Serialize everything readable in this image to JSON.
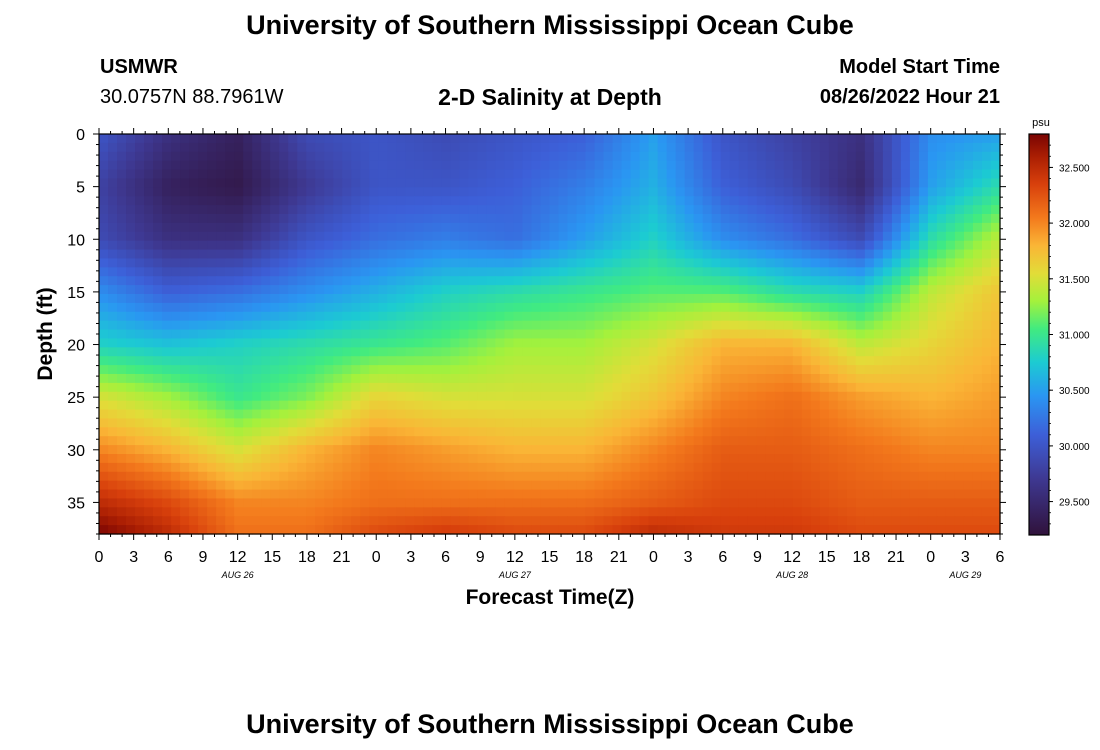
{
  "header": {
    "title": "University of Southern Mississippi Ocean Cube",
    "station": "USMWR",
    "coords": "30.0757N  88.7961W",
    "plot_title": "2-D Salinity at Depth",
    "model_start_label": "Model Start Time",
    "model_start_value": "08/26/2022 Hour 21"
  },
  "footer": {
    "title": "University of Southern Mississippi Ocean Cube"
  },
  "chart_data": {
    "type": "heatmap",
    "title": "2-D Salinity at Depth",
    "xlabel": "Forecast Time(Z)",
    "ylabel": "Depth (ft)",
    "x_hours_range": [
      0,
      78
    ],
    "x_tick_labels": [
      "0",
      "3",
      "6",
      "9",
      "12",
      "15",
      "18",
      "21",
      "0",
      "3",
      "6",
      "9",
      "12",
      "15",
      "18",
      "21",
      "0",
      "3",
      "6",
      "9",
      "12",
      "15",
      "18",
      "21",
      "0",
      "3",
      "6"
    ],
    "x_tick_hours": [
      0,
      3,
      6,
      9,
      12,
      15,
      18,
      21,
      24,
      27,
      30,
      33,
      36,
      39,
      42,
      45,
      48,
      51,
      54,
      57,
      60,
      63,
      66,
      69,
      72,
      75,
      78
    ],
    "date_labels": [
      {
        "text": "AUG 26",
        "hour": 12
      },
      {
        "text": "AUG 27",
        "hour": 36
      },
      {
        "text": "AUG 28",
        "hour": 60
      },
      {
        "text": "AUG 29",
        "hour": 75
      }
    ],
    "y_ticks": [
      0,
      5,
      10,
      15,
      20,
      25,
      30,
      35
    ],
    "ylim": [
      0,
      38
    ],
    "colorbar": {
      "unit": "psu",
      "range": [
        29.2,
        32.8
      ],
      "ticks": [
        "29.500",
        "30.000",
        "30.500",
        "31.000",
        "31.500",
        "32.000",
        "32.500"
      ],
      "tick_values": [
        29.5,
        30.0,
        30.5,
        31.0,
        31.5,
        32.0,
        32.5
      ],
      "stops": [
        {
          "v": 29.2,
          "c": "#30123b"
        },
        {
          "v": 29.7,
          "c": "#3e3891"
        },
        {
          "v": 30.1,
          "c": "#3d5fd8"
        },
        {
          "v": 30.45,
          "c": "#2a96f2"
        },
        {
          "v": 30.75,
          "c": "#1ccbd2"
        },
        {
          "v": 31.05,
          "c": "#41eb80"
        },
        {
          "v": 31.3,
          "c": "#a4f13c"
        },
        {
          "v": 31.55,
          "c": "#e2dc38"
        },
        {
          "v": 31.8,
          "c": "#fab536"
        },
        {
          "v": 32.05,
          "c": "#f3791c"
        },
        {
          "v": 32.35,
          "c": "#d8400c"
        },
        {
          "v": 32.6,
          "c": "#aa1e03"
        },
        {
          "v": 32.8,
          "c": "#7a0403"
        }
      ]
    },
    "grid_hours": [
      0,
      6,
      12,
      18,
      24,
      30,
      36,
      42,
      48,
      54,
      60,
      66,
      72,
      78
    ],
    "grid_depths": [
      0,
      5,
      10,
      15,
      20,
      25,
      30,
      35,
      38
    ],
    "salinity": [
      [
        30.0,
        29.6,
        29.4,
        29.9,
        30.0,
        29.9,
        30.0,
        30.1,
        30.5,
        30.0,
        29.8,
        29.6,
        30.4,
        30.5
      ],
      [
        29.8,
        29.4,
        29.3,
        29.7,
        30.0,
        30.0,
        30.1,
        30.3,
        30.6,
        30.1,
        29.9,
        29.5,
        30.5,
        30.9
      ],
      [
        29.9,
        29.6,
        29.6,
        30.0,
        30.2,
        30.3,
        30.2,
        30.5,
        30.8,
        30.4,
        30.2,
        29.9,
        30.9,
        31.4
      ],
      [
        30.4,
        30.1,
        30.2,
        30.4,
        30.6,
        30.8,
        30.9,
        31.0,
        31.1,
        31.1,
        30.9,
        30.8,
        31.4,
        31.7
      ],
      [
        30.8,
        30.7,
        30.8,
        30.9,
        31.0,
        31.1,
        31.3,
        31.3,
        31.5,
        31.8,
        31.8,
        31.4,
        31.6,
        31.8
      ],
      [
        31.5,
        31.3,
        31.0,
        31.2,
        31.6,
        31.5,
        31.5,
        31.5,
        31.7,
        32.0,
        32.1,
        31.9,
        31.8,
        31.9
      ],
      [
        32.0,
        31.8,
        31.5,
        31.8,
        32.0,
        31.9,
        31.8,
        31.8,
        32.0,
        32.2,
        32.2,
        32.1,
        32.0,
        32.0
      ],
      [
        32.5,
        32.3,
        32.0,
        32.0,
        32.1,
        32.1,
        32.1,
        32.1,
        32.2,
        32.3,
        32.3,
        32.2,
        32.2,
        32.2
      ],
      [
        32.8,
        32.5,
        32.1,
        32.1,
        32.3,
        32.4,
        32.3,
        32.3,
        32.5,
        32.4,
        32.4,
        32.3,
        32.3,
        32.3
      ]
    ]
  }
}
